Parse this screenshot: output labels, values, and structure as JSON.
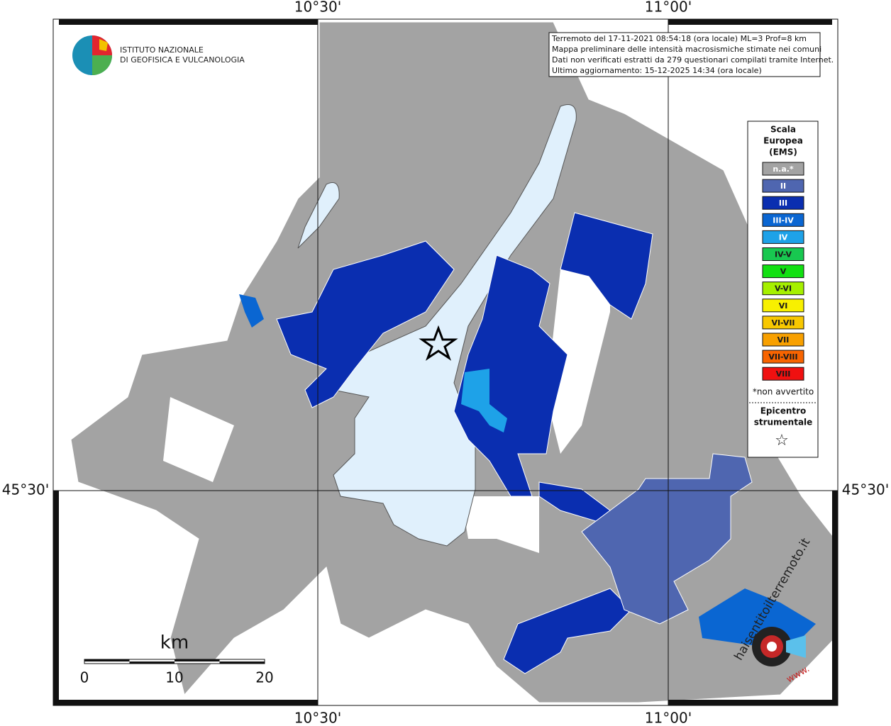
{
  "coordinates": {
    "top": [
      "10°30'",
      "11°00'"
    ],
    "bottom": [
      "10°30'",
      "11°00'"
    ],
    "left": [
      "45°30'"
    ],
    "right": [
      "45°30'"
    ]
  },
  "logo": {
    "lines": [
      "ISTITUTO NAZIONALE",
      "DI GEOFISICA E VULCANOLOGIA"
    ]
  },
  "info_box": {
    "lines": [
      "Terremoto del 17-11-2021 08:54:18 (ora locale) ML=3 Prof=8 km",
      "Mappa preliminare delle intensità macrosismiche stimate nei comuni",
      "Dati non verificati estratti da 279 questionari compilati tramite Internet.",
      "Ultimo aggiornamento: 15-12-2025 14:34 (ora locale)"
    ]
  },
  "legend": {
    "title_lines": [
      "Scala",
      "Europea",
      "(EMS)"
    ],
    "items": [
      {
        "label": "n.a.*",
        "color": "#a3a3a3",
        "text_color": "#ffffff"
      },
      {
        "label": "II",
        "color": "#4f66b0",
        "text_color": "#ffffff"
      },
      {
        "label": "III",
        "color": "#0a2eb0",
        "text_color": "#ffffff"
      },
      {
        "label": "III-IV",
        "color": "#0a66d2",
        "text_color": "#ffffff"
      },
      {
        "label": "IV",
        "color": "#1ea2e8",
        "text_color": "#ffffff"
      },
      {
        "label": "IV-V",
        "color": "#18c850",
        "text_color": "#1a1a1a"
      },
      {
        "label": "V",
        "color": "#12e012",
        "text_color": "#1a1a1a"
      },
      {
        "label": "V-VI",
        "color": "#a6f000",
        "text_color": "#1a1a1a"
      },
      {
        "label": "VI",
        "color": "#f8f000",
        "text_color": "#1a1a1a"
      },
      {
        "label": "VI-VII",
        "color": "#f8c800",
        "text_color": "#1a1a1a"
      },
      {
        "label": "VII",
        "color": "#f8a000",
        "text_color": "#1a1a1a"
      },
      {
        "label": "VII-VIII",
        "color": "#f86400",
        "text_color": "#1a1a1a"
      },
      {
        "label": "VIII",
        "color": "#f01010",
        "text_color": "#1a1a1a"
      }
    ],
    "note": "*non avvertito",
    "epicenter_lines": [
      "Epicentro",
      "strumentale"
    ],
    "epicenter_symbol": "☆"
  },
  "scale_bar": {
    "unit": "km",
    "labels": [
      "0",
      "10",
      "20"
    ]
  },
  "badge": {
    "text": "haisentitoilterremoto.it",
    "prefix": "www."
  }
}
